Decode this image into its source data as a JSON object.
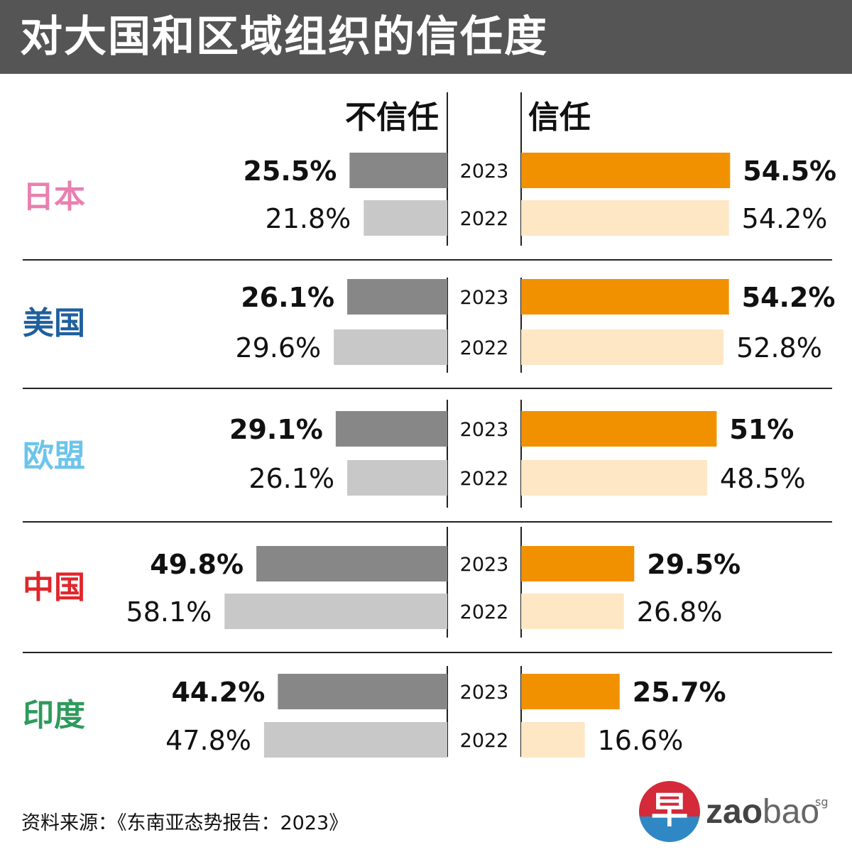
{
  "title": "对大国和区域组织的信任度",
  "headers": {
    "distrust": "不信任",
    "trust": "信任"
  },
  "source": "资料来源：《东南亚态势报告：2023》",
  "logo": {
    "glyph": "早",
    "word_bold": "zao",
    "word_light": "bao",
    "suffix": "sg"
  },
  "colors": {
    "distrust_2023": "#878787",
    "distrust_2022": "#c8c8c8",
    "trust_2023": "#f29100",
    "trust_2022": "#fde7c4",
    "title_bar": "#555555"
  },
  "chart_data": {
    "type": "bar",
    "title": "对大国和区域组织的信任度",
    "years": [
      "2023",
      "2022"
    ],
    "xlim": [
      0,
      60
    ],
    "categories": [
      "日本",
      "美国",
      "欧盟",
      "中国",
      "印度"
    ],
    "category_colors": [
      "#e97fb0",
      "#1f5f9e",
      "#6cc4ea",
      "#e0262b",
      "#2e9a5c"
    ],
    "series": [
      {
        "name": "不信任",
        "year": "2023",
        "values": [
          25.5,
          26.1,
          29.1,
          49.8,
          44.2
        ],
        "labels": [
          "25.5%",
          "26.1%",
          "29.1%",
          "49.8%",
          "44.2%"
        ]
      },
      {
        "name": "不信任",
        "year": "2022",
        "values": [
          21.8,
          29.6,
          26.1,
          58.1,
          47.8
        ],
        "labels": [
          "21.8%",
          "29.6%",
          "26.1%",
          "58.1%",
          "47.8%"
        ]
      },
      {
        "name": "信任",
        "year": "2023",
        "values": [
          54.5,
          54.2,
          51,
          29.5,
          25.7
        ],
        "labels": [
          "54.5%",
          "54.2%",
          "51%",
          "29.5%",
          "25.7%"
        ]
      },
      {
        "name": "信任",
        "year": "2022",
        "values": [
          54.2,
          52.8,
          48.5,
          26.8,
          16.6
        ],
        "labels": [
          "54.2%",
          "52.8%",
          "48.5%",
          "26.8%",
          "16.6%"
        ]
      }
    ]
  }
}
